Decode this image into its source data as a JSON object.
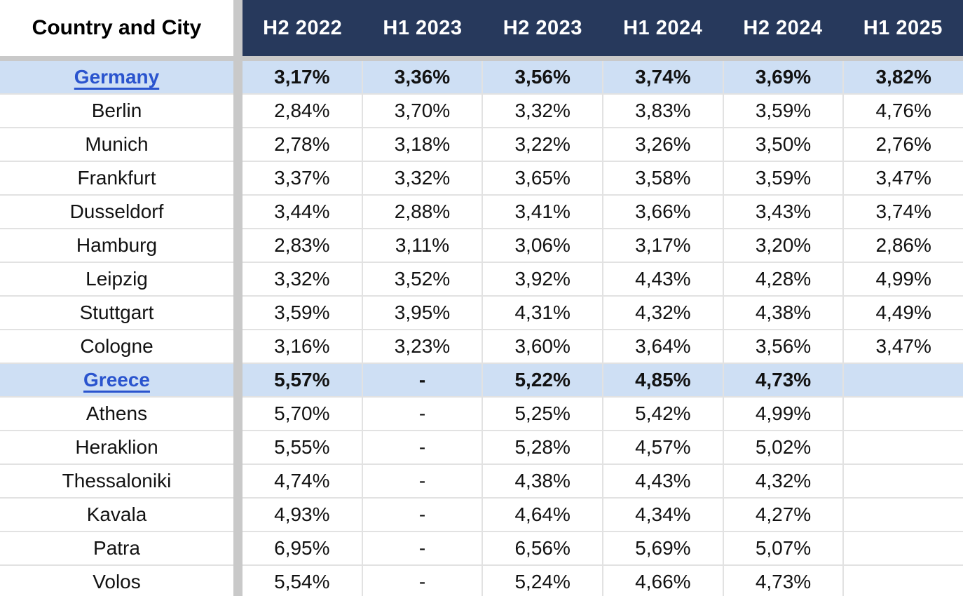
{
  "chart_data": {
    "type": "table",
    "columns": [
      "Country and City",
      "H2 2022",
      "H1 2023",
      "H2 2023",
      "H1 2024",
      "H2 2024",
      "H1 2025"
    ],
    "rows": [
      {
        "name": "Germany",
        "type": "country",
        "values": [
          "3,17%",
          "3,36%",
          "3,56%",
          "3,74%",
          "3,69%",
          "3,82%"
        ]
      },
      {
        "name": "Berlin",
        "type": "city",
        "values": [
          "2,84%",
          "3,70%",
          "3,32%",
          "3,83%",
          "3,59%",
          "4,76%"
        ]
      },
      {
        "name": "Munich",
        "type": "city",
        "values": [
          "2,78%",
          "3,18%",
          "3,22%",
          "3,26%",
          "3,50%",
          "2,76%"
        ]
      },
      {
        "name": "Frankfurt",
        "type": "city",
        "values": [
          "3,37%",
          "3,32%",
          "3,65%",
          "3,58%",
          "3,59%",
          "3,47%"
        ]
      },
      {
        "name": "Dusseldorf",
        "type": "city",
        "values": [
          "3,44%",
          "2,88%",
          "3,41%",
          "3,66%",
          "3,43%",
          "3,74%"
        ]
      },
      {
        "name": "Hamburg",
        "type": "city",
        "values": [
          "2,83%",
          "3,11%",
          "3,06%",
          "3,17%",
          "3,20%",
          "2,86%"
        ]
      },
      {
        "name": "Leipzig",
        "type": "city",
        "values": [
          "3,32%",
          "3,52%",
          "3,92%",
          "4,43%",
          "4,28%",
          "4,99%"
        ]
      },
      {
        "name": "Stuttgart",
        "type": "city",
        "values": [
          "3,59%",
          "3,95%",
          "4,31%",
          "4,32%",
          "4,38%",
          "4,49%"
        ]
      },
      {
        "name": "Cologne",
        "type": "city",
        "values": [
          "3,16%",
          "3,23%",
          "3,60%",
          "3,64%",
          "3,56%",
          "3,47%"
        ]
      },
      {
        "name": "Greece",
        "type": "country",
        "values": [
          "5,57%",
          "-",
          "5,22%",
          "4,85%",
          "4,73%",
          ""
        ]
      },
      {
        "name": "Athens",
        "type": "city",
        "values": [
          "5,70%",
          "-",
          "5,25%",
          "5,42%",
          "4,99%",
          ""
        ]
      },
      {
        "name": "Heraklion",
        "type": "city",
        "values": [
          "5,55%",
          "-",
          "5,28%",
          "4,57%",
          "5,02%",
          ""
        ]
      },
      {
        "name": "Thessaloniki",
        "type": "city",
        "values": [
          "4,74%",
          "-",
          "4,38%",
          "4,43%",
          "4,32%",
          ""
        ]
      },
      {
        "name": "Kavala",
        "type": "city",
        "values": [
          "4,93%",
          "-",
          "4,64%",
          "4,34%",
          "4,27%",
          ""
        ]
      },
      {
        "name": "Patra",
        "type": "city",
        "values": [
          "6,95%",
          "-",
          "6,56%",
          "5,69%",
          "5,07%",
          ""
        ]
      },
      {
        "name": "Volos",
        "type": "city",
        "values": [
          "5,54%",
          "-",
          "5,24%",
          "4,66%",
          "4,73%",
          ""
        ]
      }
    ]
  },
  "colors": {
    "header_bg": "#27395C",
    "highlight_row_bg": "#CEDFF4",
    "country_link": "#2A54CE",
    "pane_divider": "#C9C9C9",
    "gridline": "#E2E2E2",
    "header_text": "#FFFFFF",
    "body_text": "#121212"
  }
}
